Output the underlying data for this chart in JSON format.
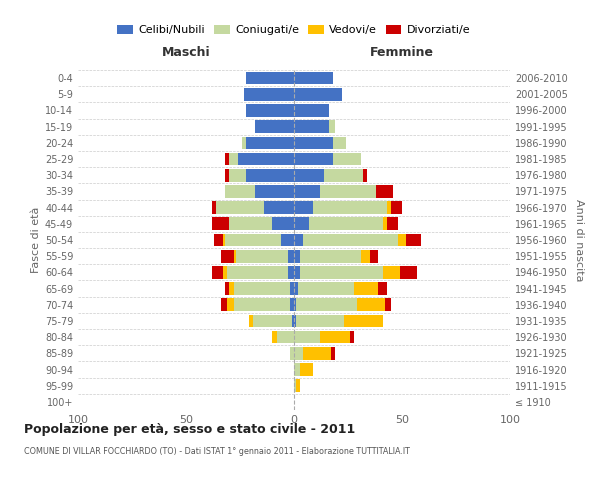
{
  "age_groups": [
    "100+",
    "95-99",
    "90-94",
    "85-89",
    "80-84",
    "75-79",
    "70-74",
    "65-69",
    "60-64",
    "55-59",
    "50-54",
    "45-49",
    "40-44",
    "35-39",
    "30-34",
    "25-29",
    "20-24",
    "15-19",
    "10-14",
    "5-9",
    "0-4"
  ],
  "birth_years": [
    "≤ 1910",
    "1911-1915",
    "1916-1920",
    "1921-1925",
    "1926-1930",
    "1931-1935",
    "1936-1940",
    "1941-1945",
    "1946-1950",
    "1951-1955",
    "1956-1960",
    "1961-1965",
    "1966-1970",
    "1971-1975",
    "1976-1980",
    "1981-1985",
    "1986-1990",
    "1991-1995",
    "1996-2000",
    "2001-2005",
    "2006-2010"
  ],
  "colors": {
    "celibe": "#4472c4",
    "coniugato": "#c5d9a0",
    "vedovo": "#ffc000",
    "divorziato": "#cc0000"
  },
  "maschi": {
    "celibe": [
      0,
      0,
      0,
      0,
      0,
      1,
      2,
      2,
      3,
      3,
      6,
      10,
      14,
      18,
      22,
      26,
      22,
      18,
      22,
      23,
      22
    ],
    "coniugato": [
      0,
      0,
      0,
      2,
      8,
      18,
      26,
      26,
      28,
      24,
      26,
      20,
      22,
      14,
      8,
      4,
      2,
      0,
      0,
      0,
      0
    ],
    "vedovo": [
      0,
      0,
      0,
      0,
      2,
      2,
      3,
      2,
      2,
      1,
      1,
      0,
      0,
      0,
      0,
      0,
      0,
      0,
      0,
      0,
      0
    ],
    "divorziato": [
      0,
      0,
      0,
      0,
      0,
      0,
      3,
      2,
      5,
      6,
      4,
      8,
      2,
      0,
      2,
      2,
      0,
      0,
      0,
      0,
      0
    ]
  },
  "femmine": {
    "celibe": [
      0,
      0,
      0,
      0,
      0,
      1,
      1,
      2,
      3,
      3,
      4,
      7,
      9,
      12,
      14,
      18,
      18,
      16,
      16,
      22,
      18
    ],
    "coniugata": [
      0,
      1,
      3,
      4,
      12,
      22,
      28,
      26,
      38,
      28,
      44,
      34,
      34,
      26,
      18,
      13,
      6,
      3,
      0,
      0,
      0
    ],
    "vedova": [
      0,
      2,
      6,
      13,
      14,
      18,
      13,
      11,
      8,
      4,
      4,
      2,
      2,
      0,
      0,
      0,
      0,
      0,
      0,
      0,
      0
    ],
    "divorziata": [
      0,
      0,
      0,
      2,
      2,
      0,
      3,
      4,
      8,
      4,
      7,
      5,
      5,
      8,
      2,
      0,
      0,
      0,
      0,
      0,
      0
    ]
  },
  "title": "Popolazione per età, sesso e stato civile - 2011",
  "subtitle": "COMUNE DI VILLAR FOCCHIARDO (TO) - Dati ISTAT 1° gennaio 2011 - Elaborazione TUTTITALIA.IT",
  "xlim": 100,
  "xlabel_left": "Maschi",
  "xlabel_right": "Femmine",
  "ylabel_left": "Fasce di età",
  "ylabel_right": "Anni di nascita",
  "legend_labels": [
    "Celibi/Nubili",
    "Coniugati/e",
    "Vedovi/e",
    "Divorziati/e"
  ],
  "background_color": "#ffffff",
  "grid_color": "#cccccc"
}
